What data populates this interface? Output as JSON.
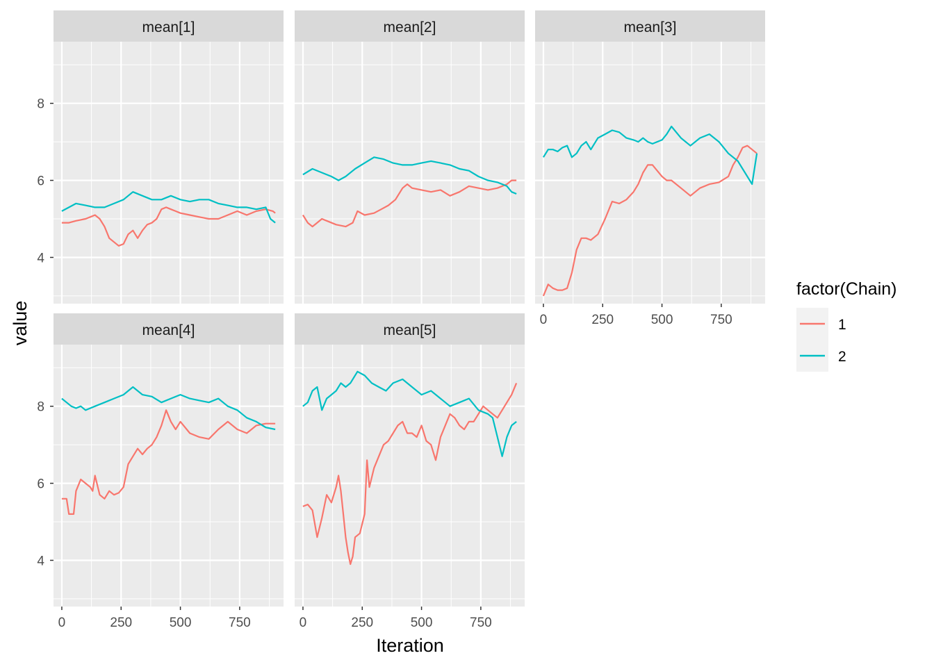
{
  "chart_data": {
    "type": "line",
    "facet_type": "wrap",
    "xlabel": "Iteration",
    "ylabel": "value",
    "xlim": [
      -35,
      935
    ],
    "ylim": [
      2.8,
      9.6
    ],
    "x_ticks": [
      0,
      250,
      500,
      750
    ],
    "x_tick_labels": [
      "0",
      "250",
      "500",
      "750"
    ],
    "y_ticks": [
      4,
      6,
      8
    ],
    "y_tick_labels": [
      "4",
      "6",
      "8"
    ],
    "grid": true,
    "legend": {
      "title": "factor(Chain)",
      "position": "right",
      "entries": [
        {
          "label": "1",
          "color": "#F8766D"
        },
        {
          "label": "2",
          "color": "#00BFC4"
        }
      ]
    },
    "colors": {
      "chain_1": "#F8766D",
      "chain_2": "#00BFC4",
      "panel_bg": "#EBEBEB",
      "strip_bg": "#D9D9D9"
    },
    "panels": [
      {
        "label": "mean[1]",
        "series": [
          {
            "name": "1",
            "x": [
              0,
              30,
              60,
              100,
              120,
              140,
              160,
              180,
              200,
              220,
              240,
              260,
              280,
              300,
              320,
              340,
              360,
              380,
              400,
              420,
              440,
              460,
              480,
              500,
              540,
              580,
              620,
              660,
              700,
              740,
              780,
              820,
              860,
              890,
              900
            ],
            "y": [
              4.9,
              4.9,
              4.95,
              5.0,
              5.05,
              5.1,
              5.0,
              4.8,
              4.5,
              4.4,
              4.3,
              4.35,
              4.6,
              4.7,
              4.5,
              4.7,
              4.85,
              4.9,
              5.0,
              5.25,
              5.3,
              5.25,
              5.2,
              5.15,
              5.1,
              5.05,
              5.0,
              5.0,
              5.1,
              5.2,
              5.1,
              5.2,
              5.25,
              5.2,
              5.15
            ]
          },
          {
            "name": "2",
            "x": [
              0,
              30,
              60,
              100,
              140,
              180,
              220,
              260,
              300,
              340,
              380,
              420,
              460,
              500,
              540,
              580,
              620,
              660,
              700,
              740,
              780,
              820,
              860,
              880,
              900
            ],
            "y": [
              5.2,
              5.3,
              5.4,
              5.35,
              5.3,
              5.3,
              5.4,
              5.5,
              5.7,
              5.6,
              5.5,
              5.5,
              5.6,
              5.5,
              5.45,
              5.5,
              5.5,
              5.4,
              5.35,
              5.3,
              5.3,
              5.25,
              5.3,
              5.0,
              4.9
            ]
          }
        ]
      },
      {
        "label": "mean[2]",
        "series": [
          {
            "name": "1",
            "x": [
              0,
              20,
              40,
              60,
              80,
              100,
              140,
              180,
              210,
              230,
              260,
              300,
              330,
              360,
              390,
              400,
              420,
              440,
              460,
              500,
              540,
              580,
              620,
              660,
              700,
              740,
              780,
              820,
              860,
              880,
              900
            ],
            "y": [
              5.1,
              4.9,
              4.8,
              4.9,
              5.0,
              4.95,
              4.85,
              4.8,
              4.9,
              5.2,
              5.1,
              5.15,
              5.25,
              5.35,
              5.5,
              5.6,
              5.8,
              5.9,
              5.8,
              5.75,
              5.7,
              5.75,
              5.6,
              5.7,
              5.85,
              5.8,
              5.75,
              5.8,
              5.9,
              6.0,
              6.0
            ]
          },
          {
            "name": "2",
            "x": [
              0,
              40,
              80,
              120,
              150,
              180,
              220,
              260,
              300,
              340,
              380,
              420,
              460,
              500,
              540,
              580,
              620,
              660,
              700,
              740,
              780,
              820,
              860,
              880,
              900
            ],
            "y": [
              6.15,
              6.3,
              6.2,
              6.1,
              6.0,
              6.1,
              6.3,
              6.45,
              6.6,
              6.55,
              6.45,
              6.4,
              6.4,
              6.45,
              6.5,
              6.45,
              6.4,
              6.3,
              6.25,
              6.1,
              6.0,
              5.95,
              5.85,
              5.7,
              5.65
            ]
          }
        ]
      },
      {
        "label": "mean[3]",
        "series": [
          {
            "name": "1",
            "x": [
              0,
              20,
              40,
              60,
              80,
              100,
              120,
              140,
              160,
              180,
              200,
              230,
              260,
              290,
              320,
              350,
              380,
              400,
              420,
              440,
              460,
              480,
              500,
              520,
              540,
              580,
              620,
              660,
              700,
              740,
              780,
              800,
              820,
              840,
              860,
              880,
              900
            ],
            "y": [
              3.0,
              3.3,
              3.2,
              3.15,
              3.15,
              3.2,
              3.6,
              4.2,
              4.5,
              4.5,
              4.45,
              4.6,
              5.0,
              5.45,
              5.4,
              5.5,
              5.7,
              5.9,
              6.2,
              6.4,
              6.4,
              6.25,
              6.1,
              6.0,
              6.0,
              5.8,
              5.6,
              5.8,
              5.9,
              5.95,
              6.1,
              6.4,
              6.6,
              6.85,
              6.9,
              6.8,
              6.7
            ]
          },
          {
            "name": "2",
            "x": [
              0,
              20,
              40,
              60,
              80,
              100,
              120,
              140,
              160,
              180,
              200,
              230,
              260,
              290,
              320,
              350,
              380,
              400,
              420,
              440,
              460,
              480,
              500,
              520,
              540,
              580,
              620,
              660,
              700,
              740,
              780,
              820,
              840,
              860,
              880,
              900
            ],
            "y": [
              6.6,
              6.8,
              6.8,
              6.75,
              6.85,
              6.9,
              6.6,
              6.7,
              6.9,
              7.0,
              6.8,
              7.1,
              7.2,
              7.3,
              7.25,
              7.1,
              7.05,
              7.0,
              7.1,
              7.0,
              6.95,
              7.0,
              7.05,
              7.2,
              7.4,
              7.1,
              6.9,
              7.1,
              7.2,
              7.0,
              6.7,
              6.5,
              6.3,
              6.1,
              5.9,
              6.7
            ]
          }
        ]
      },
      {
        "label": "mean[4]",
        "series": [
          {
            "name": "1",
            "x": [
              0,
              20,
              30,
              50,
              60,
              80,
              100,
              120,
              130,
              140,
              160,
              180,
              200,
              220,
              240,
              260,
              280,
              300,
              320,
              340,
              360,
              380,
              400,
              420,
              440,
              460,
              480,
              500,
              540,
              580,
              620,
              660,
              700,
              740,
              780,
              820,
              860,
              900
            ],
            "y": [
              5.6,
              5.6,
              5.2,
              5.2,
              5.8,
              6.1,
              6.0,
              5.9,
              5.8,
              6.2,
              5.7,
              5.6,
              5.8,
              5.7,
              5.75,
              5.9,
              6.5,
              6.7,
              6.9,
              6.75,
              6.9,
              7.0,
              7.2,
              7.5,
              7.9,
              7.6,
              7.4,
              7.6,
              7.3,
              7.2,
              7.15,
              7.4,
              7.6,
              7.4,
              7.3,
              7.5,
              7.55,
              7.55
            ]
          },
          {
            "name": "2",
            "x": [
              0,
              20,
              40,
              60,
              80,
              100,
              140,
              180,
              220,
              260,
              300,
              340,
              380,
              420,
              460,
              500,
              540,
              580,
              620,
              660,
              700,
              740,
              780,
              820,
              860,
              900
            ],
            "y": [
              8.2,
              8.1,
              8.0,
              7.95,
              8.0,
              7.9,
              8.0,
              8.1,
              8.2,
              8.3,
              8.5,
              8.3,
              8.25,
              8.1,
              8.2,
              8.3,
              8.2,
              8.15,
              8.1,
              8.2,
              8.0,
              7.9,
              7.7,
              7.6,
              7.45,
              7.4
            ]
          }
        ]
      },
      {
        "label": "mean[5]",
        "series": [
          {
            "name": "1",
            "x": [
              0,
              20,
              40,
              60,
              80,
              100,
              120,
              140,
              150,
              160,
              170,
              180,
              190,
              200,
              210,
              220,
              240,
              260,
              270,
              280,
              300,
              320,
              340,
              360,
              380,
              400,
              420,
              440,
              460,
              480,
              500,
              520,
              540,
              560,
              580,
              600,
              620,
              640,
              660,
              680,
              700,
              720,
              740,
              760,
              780,
              800,
              820,
              840,
              860,
              880,
              900
            ],
            "y": [
              5.4,
              5.45,
              5.3,
              4.6,
              5.1,
              5.7,
              5.5,
              5.9,
              6.2,
              5.8,
              5.2,
              4.6,
              4.2,
              3.9,
              4.1,
              4.6,
              4.7,
              5.2,
              6.6,
              5.9,
              6.4,
              6.7,
              7.0,
              7.1,
              7.3,
              7.5,
              7.6,
              7.3,
              7.3,
              7.2,
              7.5,
              7.1,
              7.0,
              6.6,
              7.2,
              7.5,
              7.8,
              7.7,
              7.5,
              7.4,
              7.6,
              7.6,
              7.8,
              8.0,
              7.9,
              7.8,
              7.7,
              7.9,
              8.1,
              8.3,
              8.6
            ]
          },
          {
            "name": "2",
            "x": [
              0,
              20,
              40,
              60,
              80,
              100,
              120,
              140,
              160,
              180,
              200,
              230,
              260,
              290,
              320,
              350,
              380,
              420,
              460,
              500,
              540,
              580,
              620,
              660,
              700,
              740,
              780,
              800,
              820,
              840,
              860,
              880,
              900
            ],
            "y": [
              8.0,
              8.1,
              8.4,
              8.5,
              7.9,
              8.2,
              8.3,
              8.4,
              8.6,
              8.5,
              8.6,
              8.9,
              8.8,
              8.6,
              8.5,
              8.4,
              8.6,
              8.7,
              8.5,
              8.3,
              8.4,
              8.2,
              8.0,
              8.1,
              8.2,
              7.9,
              7.8,
              7.7,
              7.2,
              6.7,
              7.2,
              7.5,
              7.6
            ]
          }
        ]
      }
    ]
  }
}
